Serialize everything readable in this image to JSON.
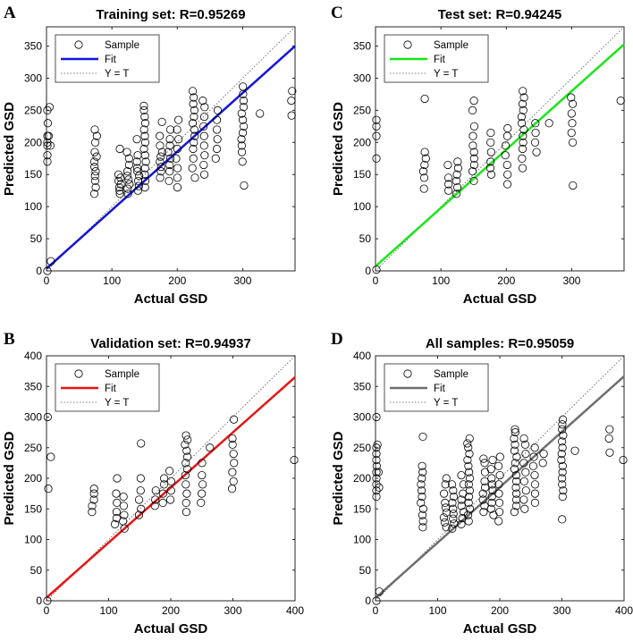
{
  "chart_data": [
    {
      "type": "scatter",
      "panel_letter": "A",
      "title": "Training set: R=0.95269",
      "xlabel": "Actual GSD",
      "ylabel": "Predicted GSD",
      "xlim": [
        0,
        380
      ],
      "ylim": [
        0,
        380
      ],
      "xticks": [
        0,
        100,
        200,
        300
      ],
      "yticks": [
        0,
        50,
        100,
        150,
        200,
        250,
        300,
        350
      ],
      "legend": {
        "placement": "top-left",
        "entries": [
          "Sample",
          "Fit",
          "Y = T"
        ]
      },
      "fit": {
        "color": "#1414d8",
        "slope": 0.912,
        "intercept": 3.5
      },
      "ideal_line": "Y = T",
      "sample_groups": [
        {
          "x": 0,
          "y": [
            0,
            170,
            180,
            195,
            200,
            210,
            230,
            250
          ]
        },
        {
          "x": 5,
          "y": [
            15,
            195,
            210,
            255
          ]
        },
        {
          "x": 75,
          "y": [
            120,
            130,
            140,
            148,
            155,
            162,
            170,
            178,
            185,
            200,
            210,
            220
          ]
        },
        {
          "x": 112,
          "y": [
            120,
            125,
            130,
            135,
            140,
            145,
            150,
            190
          ]
        },
        {
          "x": 125,
          "y": [
            120,
            128,
            135,
            142,
            148,
            155,
            165,
            175,
            185
          ]
        },
        {
          "x": 140,
          "y": [
            125,
            132,
            140,
            148,
            155,
            160,
            170,
            180,
            205
          ]
        },
        {
          "x": 150,
          "y": [
            130,
            140,
            150,
            160,
            170,
            180,
            190,
            200,
            210,
            220,
            230,
            240,
            250,
            257
          ]
        },
        {
          "x": 175,
          "y": [
            145,
            155,
            162,
            170,
            178,
            185,
            195,
            210,
            232
          ]
        },
        {
          "x": 188,
          "y": [
            140,
            155,
            165,
            175,
            185,
            195,
            205,
            220
          ]
        },
        {
          "x": 200,
          "y": [
            130,
            145,
            160,
            175,
            190,
            205,
            220,
            235
          ]
        },
        {
          "x": 225,
          "y": [
            145,
            160,
            175,
            190,
            200,
            210,
            220,
            230,
            240,
            250,
            260,
            270,
            280
          ]
        },
        {
          "x": 240,
          "y": [
            150,
            165,
            180,
            195,
            210,
            225,
            240,
            255,
            265
          ]
        },
        {
          "x": 260,
          "y": [
            175,
            190,
            205,
            220,
            235,
            250
          ]
        },
        {
          "x": 300,
          "y": [
            133,
            170,
            185,
            195,
            205,
            215,
            225,
            235,
            245,
            255,
            265,
            275,
            287
          ]
        },
        {
          "x": 325,
          "y": [
            245
          ]
        },
        {
          "x": 375,
          "y": [
            242,
            265,
            280
          ]
        }
      ]
    },
    {
      "type": "scatter",
      "panel_letter": "C",
      "title": "Test set: R=0.94245",
      "xlabel": "Actual GSD",
      "ylabel": "Predicted GSD",
      "xlim": [
        0,
        380
      ],
      "ylim": [
        0,
        380
      ],
      "xticks": [
        0,
        100,
        200,
        300
      ],
      "yticks": [
        0,
        50,
        100,
        150,
        200,
        250,
        300,
        350
      ],
      "legend": {
        "placement": "top-left",
        "entries": [
          "Sample",
          "Fit",
          "Y = T"
        ]
      },
      "fit": {
        "color": "#19e619",
        "slope": 0.91,
        "intercept": 7
      },
      "ideal_line": "Y = T",
      "sample_groups": [
        {
          "x": 0,
          "y": [
            2,
            175,
            210,
            225,
            235
          ]
        },
        {
          "x": 75,
          "y": [
            128,
            145,
            155,
            165,
            175,
            185,
            268
          ]
        },
        {
          "x": 112,
          "y": [
            125,
            135,
            145,
            165
          ]
        },
        {
          "x": 125,
          "y": [
            120,
            130,
            140,
            150,
            160,
            170
          ]
        },
        {
          "x": 150,
          "y": [
            140,
            155,
            165,
            175,
            185,
            195,
            210,
            225,
            250,
            265
          ]
        },
        {
          "x": 175,
          "y": [
            150,
            160,
            170,
            185,
            200,
            215
          ]
        },
        {
          "x": 200,
          "y": [
            135,
            150,
            165,
            180,
            195,
            210,
            222
          ]
        },
        {
          "x": 225,
          "y": [
            160,
            175,
            190,
            200,
            210,
            220,
            230,
            240,
            250,
            260,
            270,
            280
          ]
        },
        {
          "x": 245,
          "y": [
            185,
            200,
            215,
            230
          ]
        },
        {
          "x": 265,
          "y": [
            230
          ]
        },
        {
          "x": 300,
          "y": [
            133,
            200,
            215,
            230,
            245,
            260,
            270
          ]
        },
        {
          "x": 375,
          "y": [
            265
          ]
        }
      ]
    },
    {
      "type": "scatter",
      "panel_letter": "B",
      "title": "Validation set: R=0.94937",
      "xlabel": "Actual GSD",
      "ylabel": "Predicted GSD",
      "xlim": [
        0,
        400
      ],
      "ylim": [
        0,
        400
      ],
      "xticks": [
        0,
        100,
        200,
        300,
        400
      ],
      "yticks": [
        0,
        50,
        100,
        150,
        200,
        250,
        300,
        350,
        400
      ],
      "legend": {
        "placement": "top-left",
        "entries": [
          "Sample",
          "Fit",
          "Y = T"
        ]
      },
      "fit": {
        "color": "#e81414",
        "slope": 0.9,
        "intercept": 5
      },
      "ideal_line": "Y = T",
      "sample_groups": [
        {
          "x": 0,
          "y": [
            0,
            300
          ]
        },
        {
          "x": 5,
          "y": [
            183,
            235
          ]
        },
        {
          "x": 75,
          "y": [
            145,
            155,
            165,
            175,
            183
          ]
        },
        {
          "x": 112,
          "y": [
            125,
            135,
            145,
            160,
            175,
            200
          ]
        },
        {
          "x": 125,
          "y": [
            118,
            130,
            140,
            155,
            170
          ]
        },
        {
          "x": 150,
          "y": [
            140,
            150,
            165,
            180,
            200,
            257
          ]
        },
        {
          "x": 175,
          "y": [
            155,
            165,
            180
          ]
        },
        {
          "x": 188,
          "y": [
            160,
            175,
            190,
            200
          ]
        },
        {
          "x": 200,
          "y": [
            165,
            180,
            195,
            212
          ]
        },
        {
          "x": 225,
          "y": [
            145,
            160,
            175,
            190,
            205,
            215,
            225,
            235,
            245,
            255,
            263,
            270
          ]
        },
        {
          "x": 250,
          "y": [
            160,
            175,
            190,
            205,
            225
          ]
        },
        {
          "x": 265,
          "y": [
            250
          ]
        },
        {
          "x": 300,
          "y": [
            183,
            195,
            210,
            225,
            240,
            255,
            265,
            296
          ]
        },
        {
          "x": 400,
          "y": [
            230
          ]
        }
      ]
    },
    {
      "type": "scatter",
      "panel_letter": "D",
      "title": "All samples: R=0.95059",
      "xlabel": "Actual GSD",
      "ylabel": "Predicted GSD",
      "xlim": [
        0,
        400
      ],
      "ylim": [
        0,
        400
      ],
      "xticks": [
        0,
        100,
        200,
        300,
        400
      ],
      "yticks": [
        0,
        50,
        100,
        150,
        200,
        250,
        300,
        350,
        400
      ],
      "legend": {
        "placement": "top-left",
        "entries": [
          "Sample",
          "Fit",
          "Y = T"
        ]
      },
      "fit": {
        "color": "#6e6e6e",
        "slope": 0.905,
        "intercept": 4.5
      },
      "ideal_line": "Y = T",
      "sample_groups": [
        {
          "x": 0,
          "y": [
            0,
            170,
            180,
            190,
            200,
            210,
            220,
            230,
            240,
            250,
            300
          ]
        },
        {
          "x": 5,
          "y": [
            15,
            185,
            210,
            255
          ]
        },
        {
          "x": 75,
          "y": [
            120,
            130,
            140,
            150,
            160,
            170,
            180,
            190,
            200,
            210,
            220,
            268
          ]
        },
        {
          "x": 112,
          "y": [
            120,
            128,
            136,
            144,
            152,
            160,
            175,
            190,
            200
          ]
        },
        {
          "x": 125,
          "y": [
            118,
            126,
            134,
            142,
            150,
            160,
            170,
            180,
            190
          ]
        },
        {
          "x": 140,
          "y": [
            125,
            135,
            145,
            155,
            165,
            175,
            190,
            205
          ]
        },
        {
          "x": 150,
          "y": [
            130,
            140,
            150,
            160,
            170,
            180,
            190,
            200,
            210,
            220,
            230,
            240,
            250,
            257,
            265
          ]
        },
        {
          "x": 175,
          "y": [
            145,
            155,
            165,
            175,
            185,
            195,
            210,
            225,
            232
          ]
        },
        {
          "x": 188,
          "y": [
            140,
            150,
            160,
            170,
            180,
            190,
            200,
            215,
            230
          ]
        },
        {
          "x": 200,
          "y": [
            130,
            145,
            160,
            175,
            190,
            205,
            220,
            235
          ]
        },
        {
          "x": 225,
          "y": [
            145,
            155,
            165,
            175,
            185,
            195,
            205,
            215,
            225,
            235,
            245,
            255,
            265,
            275,
            280
          ]
        },
        {
          "x": 240,
          "y": [
            150,
            165,
            180,
            195,
            210,
            225,
            240,
            255,
            265
          ]
        },
        {
          "x": 255,
          "y": [
            160,
            175,
            190,
            205,
            220,
            235,
            250
          ]
        },
        {
          "x": 270,
          "y": [
            225,
            240
          ]
        },
        {
          "x": 300,
          "y": [
            133,
            170,
            180,
            190,
            200,
            210,
            220,
            230,
            240,
            250,
            260,
            270,
            280,
            288,
            296
          ]
        },
        {
          "x": 320,
          "y": [
            245
          ]
        },
        {
          "x": 375,
          "y": [
            242,
            265,
            280
          ]
        },
        {
          "x": 400,
          "y": [
            230
          ]
        }
      ]
    }
  ]
}
